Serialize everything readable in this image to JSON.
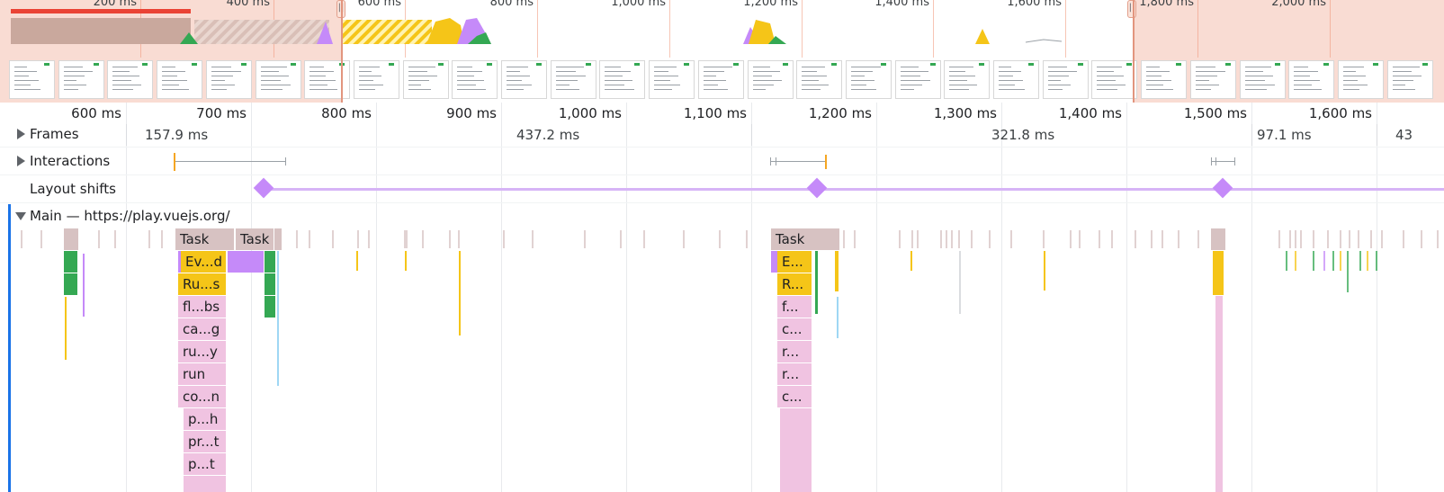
{
  "overview": {
    "ticks": [
      "200 ms",
      "400 ms",
      "600 ms",
      "800 ms",
      "1,000 ms",
      "1,200 ms",
      "1,400 ms",
      "1,600 ms",
      "1,800 ms",
      "2,000 ms"
    ],
    "handle_glyph": "||",
    "screenshot_count": 29
  },
  "ruler": {
    "ticks": [
      "600 ms",
      "700 ms",
      "800 ms",
      "900 ms",
      "1,000 ms",
      "1,100 ms",
      "1,200 ms",
      "1,300 ms",
      "1,400 ms",
      "1,500 ms",
      "1,600 ms"
    ]
  },
  "tracks": {
    "frames": {
      "label": "Frames",
      "durations": [
        "157.9 ms",
        "437.2 ms",
        "321.8 ms",
        "97.1 ms",
        "43"
      ]
    },
    "interactions": {
      "label": "Interactions"
    },
    "layout_shifts": {
      "label": "Layout shifts"
    },
    "main": {
      "label": "Main — https://play.vuejs.org/"
    }
  },
  "flame": {
    "task_label": "Task",
    "col1": [
      "Ev...d",
      "Ru...s",
      "fl...bs",
      "ca...g",
      "ru...y",
      "run",
      "co...n",
      "p...h",
      "pr...t",
      "p...t"
    ],
    "col2": [
      "E...",
      "R...",
      "f...",
      "c...",
      "r...",
      "r...",
      "c..."
    ]
  },
  "colors": {
    "task": "#d7c2c2",
    "event": "#f5c518",
    "script": "#f0c3e1",
    "render": "#c58af9",
    "paint": "#34a853",
    "accent": "#1a73e8"
  }
}
